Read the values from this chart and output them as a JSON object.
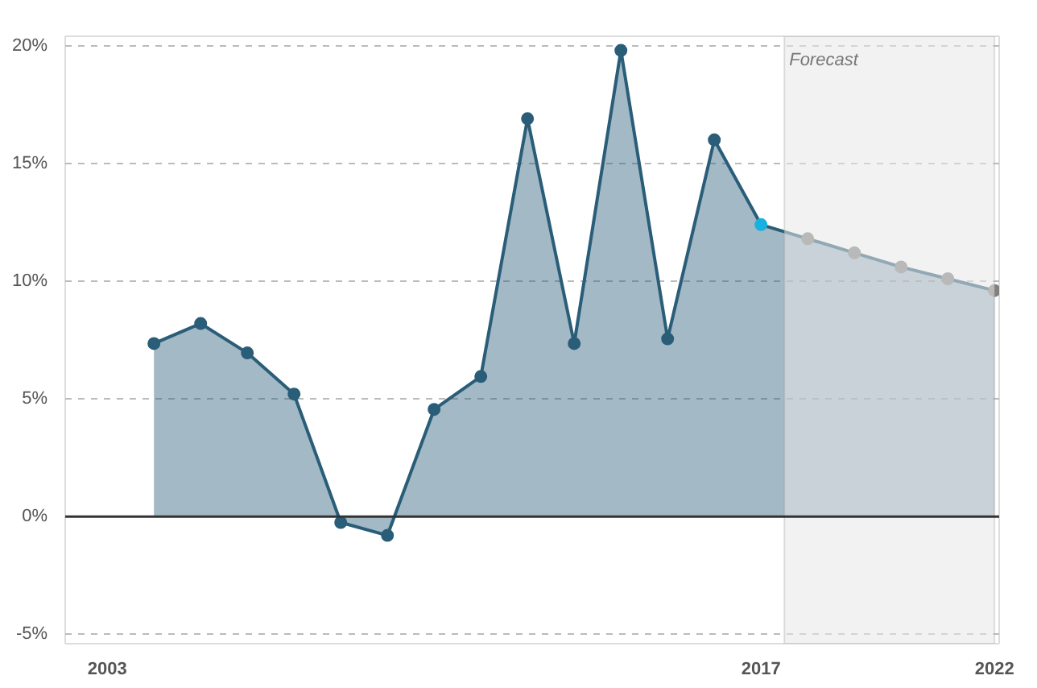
{
  "chart_data": {
    "type": "area",
    "x": [
      2004,
      2005,
      2006,
      2007,
      2008,
      2009,
      2010,
      2011,
      2012,
      2013,
      2014,
      2015,
      2016,
      2017,
      2018,
      2019,
      2020,
      2021,
      2022
    ],
    "series": [
      {
        "color": "#2a5d78",
        "values": [
          7.35,
          8.2,
          6.95,
          5.2,
          -0.25,
          -0.8,
          4.55,
          5.95,
          16.9,
          7.35,
          19.8,
          7.55,
          16.0,
          12.4,
          11.8,
          11.2,
          10.6,
          10.1,
          9.6
        ],
        "colors": [
          "#2a5d78",
          "#2a5d78",
          "#2a5d78",
          "#2a5d78",
          "#2a5d78",
          "#2a5d78",
          "#2a5d78",
          "#2a5d78",
          "#2a5d78",
          "#2a5d78",
          "#2a5d78",
          "#2a5d78",
          "#2a5d78",
          "#1ab0e0",
          "#808080",
          "#808080",
          "#808080",
          "#808080",
          "#808080"
        ]
      }
    ],
    "xlim": [
      2002.1,
      2022.1
    ],
    "xticks": [
      2003,
      2017,
      2022
    ],
    "ylim": [
      -5.4,
      20.4
    ],
    "yticks": [
      {
        "value": -5,
        "label": "-5%"
      },
      {
        "value": 0,
        "label": "0%"
      },
      {
        "value": 5,
        "label": "5%"
      },
      {
        "value": 10,
        "label": "10%"
      },
      {
        "value": 15,
        "label": "15%"
      },
      {
        "value": 20,
        "label": "20%"
      }
    ],
    "grid": "y",
    "marker": "circle",
    "line_style": "solid",
    "ref_lines": [
      {
        "axis": "y",
        "value": 0,
        "color": "#333333"
      }
    ],
    "bands": [
      {
        "axis": "x",
        "from": 2017.5,
        "to": 2022,
        "label": "Forecast",
        "color": "#e8e8e8"
      }
    ]
  }
}
